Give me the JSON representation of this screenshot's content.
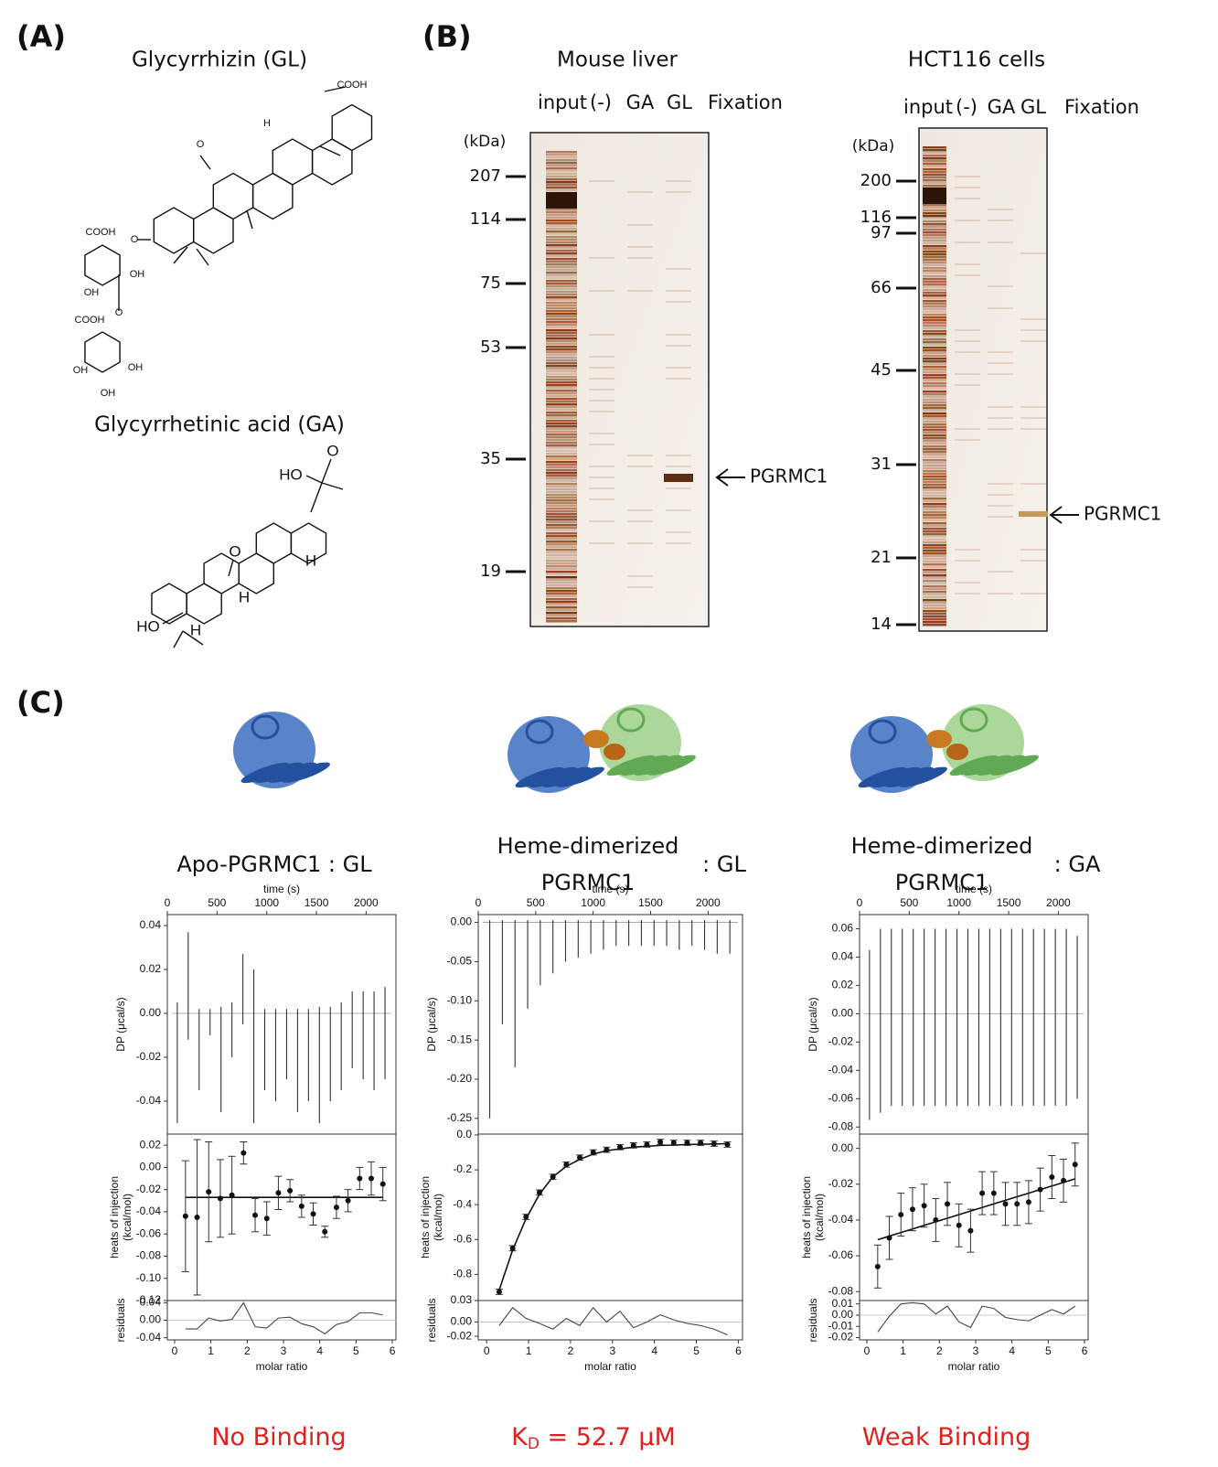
{
  "panel_a": {
    "label": "(A)",
    "gl": {
      "title": "Glycyrrhizin (GL)",
      "atoms": [
        "COOH",
        "H",
        "O",
        "O",
        "COOH",
        "OH",
        "OH",
        "O",
        "COOH",
        "OH",
        "OH",
        "OH"
      ]
    },
    "ga": {
      "title": "Glycyrrhetinic acid (GA)",
      "atoms": [
        "O",
        "HO",
        "O",
        "H",
        "H",
        "HO",
        "H"
      ]
    }
  },
  "panel_b": {
    "label": "(B)",
    "gels": [
      {
        "title": "Mouse liver",
        "lanes": [
          "input",
          "(-)",
          "GA",
          "GL",
          "Fixation"
        ],
        "unit": "(kDa)",
        "markers": [
          207,
          114,
          75,
          53,
          35,
          19
        ],
        "arrow_label": "PGRMC1"
      },
      {
        "title": "HCT116 cells",
        "lanes": [
          "input",
          "(-)",
          "GA",
          "GL",
          "Fixation"
        ],
        "unit": "(kDa)",
        "markers": [
          200,
          116,
          97,
          66,
          45,
          31,
          21,
          14
        ],
        "arrow_label": "PGRMC1"
      }
    ]
  },
  "panel_c": {
    "label": "(C)",
    "columns": [
      {
        "label_lines": [
          "Apo-PGRMC1 : GL"
        ],
        "result": {
          "text": "No Binding"
        }
      },
      {
        "label_lines": [
          "Heme-dimerized",
          "PGRMC1"
        ],
        "suffix": ": GL",
        "result": {
          "symbol": "K",
          "subscript": "D",
          "text": " = 52.7 μM"
        }
      },
      {
        "label_lines": [
          "Heme-dimerized",
          "PGRMC1"
        ],
        "suffix": ": GA",
        "result": {
          "text": "Weak Binding"
        }
      }
    ]
  },
  "chart_data": [
    {
      "type": "impulse",
      "xlabel": "time (s)",
      "ylabel": "DP (μcal/s)",
      "x": [
        100,
        210,
        320,
        430,
        540,
        650,
        760,
        870,
        980,
        1090,
        1200,
        1310,
        1420,
        1530,
        1640,
        1750,
        1860,
        1970,
        2080,
        2190
      ],
      "peaks_up": [
        0.005,
        0.037,
        0.002,
        0.002,
        0.003,
        0.005,
        0.027,
        0.02,
        0.002,
        0.002,
        0.002,
        0.002,
        0.002,
        0.003,
        0.003,
        0.005,
        0.01,
        0.01,
        0.01,
        0.012
      ],
      "peaks_down": [
        -0.05,
        -0.012,
        -0.035,
        -0.01,
        -0.045,
        -0.02,
        -0.005,
        -0.05,
        -0.035,
        -0.04,
        -0.03,
        -0.045,
        -0.04,
        -0.05,
        -0.04,
        -0.035,
        -0.025,
        -0.03,
        -0.035,
        -0.03
      ],
      "xlim": [
        0,
        2300
      ],
      "xticks": [
        0,
        500,
        1000,
        1500,
        2000
      ],
      "ylim": [
        -0.055,
        0.045
      ],
      "yticks": [
        0.04,
        0.02,
        {
          "value": 0,
          "label": "0.00"
        },
        -0.02,
        -0.04
      ]
    },
    {
      "type": "scatter",
      "ylabel": [
        "heats of injection",
        "(kcal/mol)"
      ],
      "x": [
        0.3,
        0.62,
        0.94,
        1.26,
        1.58,
        1.9,
        2.22,
        2.54,
        2.86,
        3.18,
        3.5,
        3.82,
        4.14,
        4.46,
        4.78,
        5.1,
        5.42,
        5.74
      ],
      "values": [
        -0.044,
        -0.045,
        -0.022,
        -0.028,
        -0.025,
        0.013,
        -0.043,
        -0.046,
        -0.023,
        -0.021,
        -0.035,
        -0.042,
        -0.058,
        -0.036,
        -0.03,
        -0.01,
        -0.01,
        -0.015
      ],
      "errors": [
        0.05,
        0.07,
        0.045,
        0.035,
        0.035,
        0.01,
        0.015,
        0.015,
        0.015,
        0.01,
        0.01,
        0.01,
        0.005,
        0.01,
        0.01,
        0.01,
        0.015,
        0.015
      ],
      "fit": [
        -0.027,
        -0.027,
        -0.027,
        -0.027,
        -0.027,
        -0.027,
        -0.027,
        -0.027,
        -0.027,
        -0.027,
        -0.027,
        -0.027,
        -0.027,
        -0.027,
        -0.027,
        -0.027,
        -0.027,
        -0.027
      ],
      "xlim": [
        -0.2,
        6.1
      ],
      "ylim": [
        -0.12,
        0.03
      ],
      "yticks": [
        0.02,
        {
          "value": 0,
          "label": "0.00"
        },
        -0.02,
        -0.04,
        -0.06,
        -0.08,
        {
          "value": -0.1,
          "label": "-0.10"
        },
        -0.12
      ]
    },
    {
      "type": "line",
      "xlabel": "molar ratio",
      "ylabel": "residuals",
      "x": [
        0.3,
        0.62,
        0.94,
        1.26,
        1.58,
        1.9,
        2.22,
        2.54,
        2.86,
        3.18,
        3.5,
        3.82,
        4.14,
        4.46,
        4.78,
        5.1,
        5.42,
        5.74
      ],
      "values": [
        -0.02,
        -0.02,
        0.005,
        -0.002,
        0.002,
        0.04,
        -0.015,
        -0.018,
        0.005,
        0.007,
        -0.008,
        -0.015,
        -0.031,
        -0.01,
        -0.003,
        0.017,
        0.017,
        0.012
      ],
      "xlim": [
        -0.2,
        6.1
      ],
      "xticks": [
        0,
        1,
        2,
        3,
        4,
        5,
        6
      ],
      "ylim": [
        -0.045,
        0.045
      ],
      "yticks": [
        0.04,
        {
          "value": 0,
          "label": "0.00"
        },
        -0.04
      ]
    },
    {
      "type": "impulse",
      "xlabel": "time (s)",
      "ylabel": "DP (μcal/s)",
      "x": [
        100,
        210,
        320,
        430,
        540,
        650,
        760,
        870,
        980,
        1090,
        1200,
        1310,
        1420,
        1530,
        1640,
        1750,
        1860,
        1970,
        2080,
        2190
      ],
      "peaks_up": [
        0.003,
        0.003,
        0.003,
        0.003,
        0.003,
        0.003,
        0.003,
        0.003,
        0.003,
        0.003,
        0.003,
        0.003,
        0.003,
        0.003,
        0.003,
        0.003,
        0.003,
        0.003,
        0.003,
        0.003
      ],
      "peaks_down": [
        -0.25,
        -0.13,
        -0.185,
        -0.11,
        -0.08,
        -0.065,
        -0.05,
        -0.045,
        -0.04,
        -0.035,
        -0.03,
        -0.03,
        -0.03,
        -0.03,
        -0.03,
        -0.035,
        -0.03,
        -0.035,
        -0.04,
        -0.04
      ],
      "xlim": [
        0,
        2300
      ],
      "xticks": [
        0,
        500,
        1000,
        1500,
        2000
      ],
      "ylim": [
        -0.27,
        0.01
      ],
      "yticks": [
        {
          "value": 0,
          "label": "0.00"
        },
        -0.05,
        {
          "value": -0.1,
          "label": "-0.10"
        },
        -0.15,
        {
          "value": -0.2,
          "label": "-0.20"
        },
        -0.25
      ]
    },
    {
      "type": "scatter",
      "ylabel": [
        "heats of injection",
        "(kcal/mol)"
      ],
      "x": [
        0.3,
        0.62,
        0.94,
        1.26,
        1.58,
        1.9,
        2.22,
        2.54,
        2.86,
        3.18,
        3.5,
        3.82,
        4.14,
        4.46,
        4.78,
        5.1,
        5.42,
        5.74
      ],
      "values": [
        -0.9,
        -0.65,
        -0.47,
        -0.33,
        -0.24,
        -0.17,
        -0.13,
        -0.1,
        -0.085,
        -0.07,
        -0.06,
        -0.055,
        -0.04,
        -0.045,
        -0.045,
        -0.045,
        -0.05,
        -0.055
      ],
      "errors": [
        0.015,
        0.015,
        0.015,
        0.015,
        0.015,
        0.015,
        0.015,
        0.015,
        0.015,
        0.015,
        0.015,
        0.015,
        0.015,
        0.015,
        0.015,
        0.015,
        0.015,
        0.015
      ],
      "fit": [
        -0.89,
        -0.66,
        -0.48,
        -0.34,
        -0.24,
        -0.18,
        -0.14,
        -0.11,
        -0.09,
        -0.08,
        -0.07,
        -0.065,
        -0.06,
        -0.058,
        -0.055,
        -0.053,
        -0.052,
        -0.05
      ],
      "xlim": [
        -0.2,
        6.1
      ],
      "ylim": [
        -0.95,
        0.005
      ],
      "yticks": [
        {
          "value": 0,
          "label": "0.0"
        },
        -0.2,
        -0.4,
        -0.6,
        -0.8
      ]
    },
    {
      "type": "line",
      "xlabel": "molar ratio",
      "ylabel": "residuals",
      "x": [
        0.3,
        0.62,
        0.94,
        1.26,
        1.58,
        1.9,
        2.22,
        2.54,
        2.86,
        3.18,
        3.5,
        3.82,
        4.14,
        4.46,
        4.78,
        5.1,
        5.42,
        5.74
      ],
      "values": [
        -0.005,
        0.02,
        0.005,
        -0.002,
        -0.01,
        0.005,
        -0.005,
        0.02,
        0,
        0.015,
        -0.008,
        0,
        0.01,
        0.003,
        -0.002,
        -0.005,
        -0.01,
        -0.018
      ],
      "xlim": [
        -0.2,
        6.1
      ],
      "xticks": [
        0,
        1,
        2,
        3,
        4,
        5,
        6
      ],
      "ylim": [
        -0.025,
        0.03
      ],
      "yticks": [
        0.03,
        {
          "value": 0,
          "label": "0.00"
        },
        -0.02
      ]
    },
    {
      "type": "impulse",
      "xlabel": "time (s)",
      "ylabel": "DP (μcal/s)",
      "x": [
        100,
        210,
        320,
        430,
        540,
        650,
        760,
        870,
        980,
        1090,
        1200,
        1310,
        1420,
        1530,
        1640,
        1750,
        1860,
        1970,
        2080,
        2190
      ],
      "peaks_up": [
        0.045,
        0.06,
        0.06,
        0.06,
        0.06,
        0.06,
        0.06,
        0.06,
        0.06,
        0.06,
        0.06,
        0.06,
        0.06,
        0.06,
        0.06,
        0.06,
        0.06,
        0.06,
        0.06,
        0.055
      ],
      "peaks_down": [
        -0.075,
        -0.07,
        -0.065,
        -0.065,
        -0.065,
        -0.065,
        -0.065,
        -0.065,
        -0.065,
        -0.065,
        -0.065,
        -0.065,
        -0.065,
        -0.065,
        -0.065,
        -0.065,
        -0.065,
        -0.065,
        -0.065,
        -0.06
      ],
      "xlim": [
        0,
        2300
      ],
      "xticks": [
        0,
        500,
        1000,
        1500,
        2000
      ],
      "ylim": [
        -0.085,
        0.07
      ],
      "yticks": [
        0.06,
        0.04,
        0.02,
        {
          "value": 0,
          "label": "0.00"
        },
        -0.02,
        -0.04,
        -0.06,
        -0.08
      ]
    },
    {
      "type": "scatter",
      "ylabel": [
        "heats of injection",
        "(kcal/mol)"
      ],
      "x": [
        0.3,
        0.62,
        0.94,
        1.26,
        1.58,
        1.9,
        2.22,
        2.54,
        2.86,
        3.18,
        3.5,
        3.82,
        4.14,
        4.46,
        4.78,
        5.1,
        5.42,
        5.74
      ],
      "values": [
        -0.066,
        -0.05,
        -0.037,
        -0.034,
        -0.032,
        -0.04,
        -0.031,
        -0.043,
        -0.046,
        -0.025,
        -0.025,
        -0.031,
        -0.031,
        -0.03,
        -0.023,
        -0.016,
        -0.018,
        -0.009
      ],
      "errors": [
        0.012,
        0.012,
        0.012,
        0.012,
        0.012,
        0.012,
        0.012,
        0.012,
        0.012,
        0.012,
        0.012,
        0.012,
        0.012,
        0.012,
        0.012,
        0.012,
        0.012,
        0.012
      ],
      "fit": [
        -0.051,
        -0.049,
        -0.047,
        -0.045,
        -0.043,
        -0.041,
        -0.039,
        -0.037,
        -0.035,
        -0.033,
        -0.031,
        -0.029,
        -0.027,
        -0.025,
        -0.023,
        -0.021,
        -0.019,
        -0.017
      ],
      "xlim": [
        -0.2,
        6.1
      ],
      "ylim": [
        -0.085,
        0.008
      ],
      "yticks": [
        {
          "value": 0,
          "label": "0.00"
        },
        -0.02,
        -0.04,
        -0.06,
        -0.08
      ]
    },
    {
      "type": "line",
      "xlabel": "molar ratio",
      "ylabel": "residuals",
      "x": [
        0.3,
        0.62,
        0.94,
        1.26,
        1.58,
        1.9,
        2.22,
        2.54,
        2.86,
        3.18,
        3.5,
        3.82,
        4.14,
        4.46,
        4.78,
        5.1,
        5.42,
        5.74
      ],
      "values": [
        -0.015,
        -0.001,
        0.01,
        0.011,
        0.01,
        0.001,
        0.008,
        -0.006,
        -0.011,
        0.008,
        0.006,
        -0.002,
        -0.004,
        -0.005,
        0,
        0.005,
        0.001,
        0.008
      ],
      "xlim": [
        -0.2,
        6.1
      ],
      "xticks": [
        0,
        1,
        2,
        3,
        4,
        5,
        6
      ],
      "ylim": [
        -0.022,
        0.013
      ],
      "yticks": [
        0.01,
        {
          "value": 0,
          "label": "0.00"
        },
        -0.01,
        -0.02
      ]
    }
  ]
}
